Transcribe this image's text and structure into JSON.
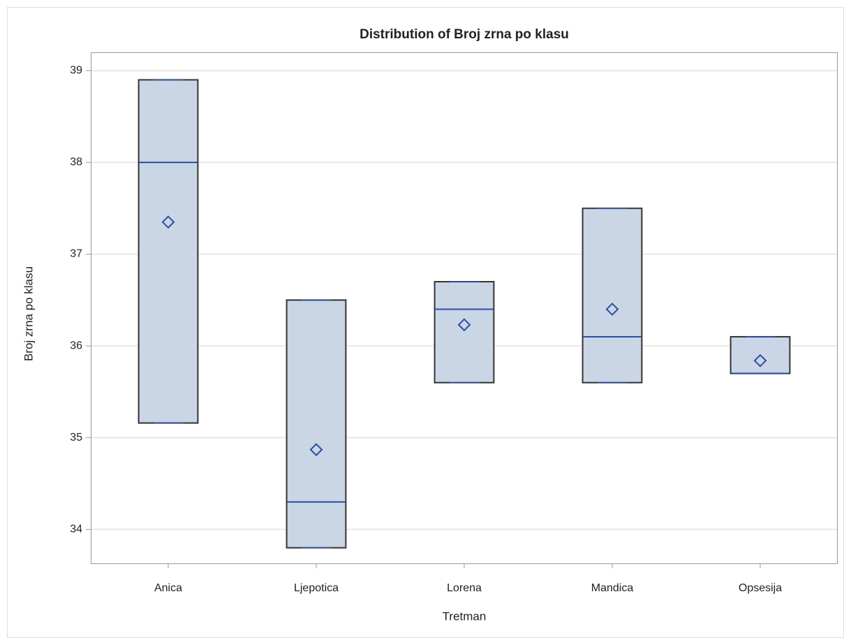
{
  "chart_data": {
    "type": "box",
    "title": "Distribution of Broj zrna po klasu",
    "x_label": "Tretman",
    "y_label": "Broj zrna po klasu",
    "categories": [
      "Anica",
      "Ljepotica",
      "Lorena",
      "Mandica",
      "Opsesija"
    ],
    "min": [
      35.16,
      33.8,
      35.6,
      35.6,
      35.7
    ],
    "q1": [
      35.16,
      33.8,
      35.6,
      35.6,
      35.7
    ],
    "median": [
      38.0,
      34.3,
      36.4,
      36.1,
      35.7
    ],
    "q3": [
      38.9,
      36.5,
      36.7,
      37.5,
      36.1
    ],
    "max": [
      38.9,
      36.5,
      36.7,
      37.5,
      36.1
    ],
    "mean": [
      37.35,
      34.87,
      36.23,
      36.4,
      35.84
    ],
    "box_color": "#cad5e5",
    "line_color": "#2a4ea0",
    "ylim": [
      33.63,
      39.2
    ],
    "yticks": [
      34,
      35,
      36,
      37,
      38,
      39
    ],
    "grid": true
  }
}
